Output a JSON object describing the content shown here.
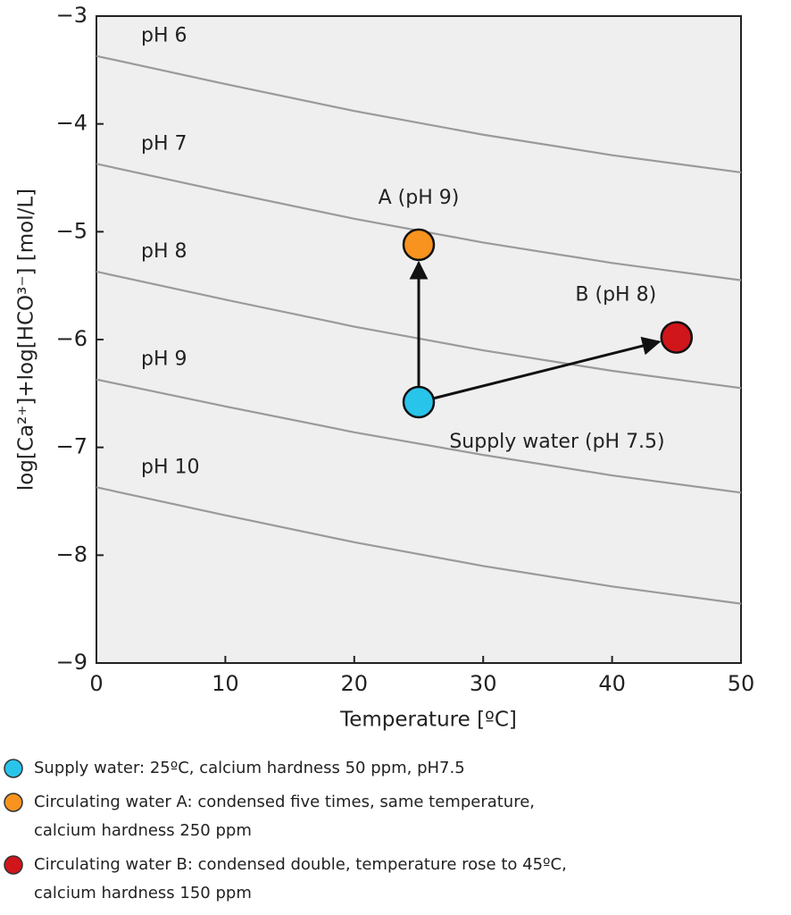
{
  "chart_data": {
    "type": "line",
    "x_label": "Temperature [ºC]",
    "y_label": "log[Ca²⁺]+log[HCO³⁻]  [mol/L]",
    "x": [
      0,
      10,
      20,
      30,
      40,
      50
    ],
    "xlim": [
      0,
      50
    ],
    "xticks": [
      0,
      10,
      20,
      30,
      40,
      50
    ],
    "ylim": [
      -9,
      -3
    ],
    "yticks": [
      {
        "value": -9,
        "label": "−9"
      },
      {
        "value": -8,
        "label": "−8"
      },
      {
        "value": -7,
        "label": "−7"
      },
      {
        "value": -6,
        "label": "−6"
      },
      {
        "value": -5,
        "label": "−5"
      },
      {
        "value": -4,
        "label": "−4"
      },
      {
        "value": -3,
        "label": "−3"
      }
    ],
    "series": [
      {
        "name": "pH 6",
        "color": "#9a9a9a",
        "values": [
          -3.37,
          -3.63,
          -3.88,
          -4.1,
          -4.29,
          -4.45
        ]
      },
      {
        "name": "pH 7",
        "color": "#9a9a9a",
        "values": [
          -4.37,
          -4.63,
          -4.88,
          -5.1,
          -5.29,
          -5.45
        ]
      },
      {
        "name": "pH 8",
        "color": "#9a9a9a",
        "values": [
          -5.37,
          -5.63,
          -5.88,
          -6.1,
          -6.29,
          -6.45
        ]
      },
      {
        "name": "pH 9",
        "color": "#9a9a9a",
        "values": [
          -6.37,
          -6.62,
          -6.86,
          -7.07,
          -7.26,
          -7.42
        ]
      },
      {
        "name": "pH 10",
        "color": "#9a9a9a",
        "values": [
          -7.37,
          -7.63,
          -7.88,
          -8.1,
          -8.29,
          -8.45
        ]
      }
    ],
    "points": [
      {
        "name": "Supply water (pH 7.5)",
        "x": 25,
        "y": -6.58,
        "color": "#29c4ea"
      },
      {
        "name": "A (pH 9)",
        "x": 25,
        "y": -5.12,
        "color": "#f7931e"
      },
      {
        "name": "B (pH 8)",
        "x": 45,
        "y": -5.98,
        "color": "#d0151b"
      }
    ],
    "legend": [
      {
        "color": "#29c4ea",
        "lines": [
          "Supply water: 25ºC, calcium hardness 50 ppm, pH7.5"
        ]
      },
      {
        "color": "#f7931e",
        "lines": [
          "Circulating water A: condensed five times, same temperature,",
          "calcium hardness 250 ppm"
        ]
      },
      {
        "color": "#d0151b",
        "lines": [
          "Circulating water B: condensed double, temperature rose to 45ºC,",
          "calcium hardness 150 ppm"
        ]
      }
    ]
  }
}
